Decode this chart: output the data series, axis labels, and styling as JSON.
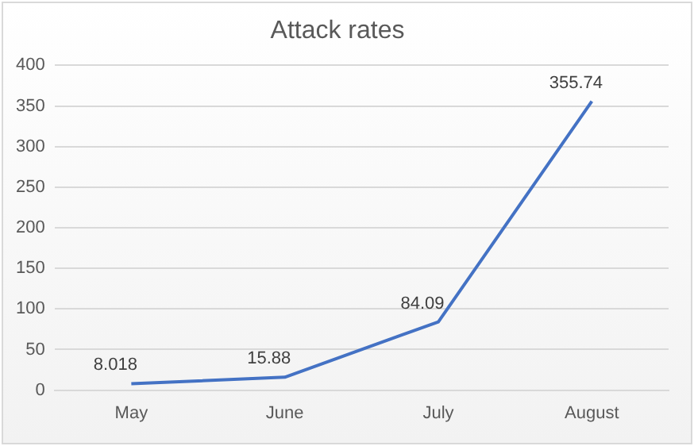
{
  "chart_data": {
    "type": "line",
    "title": "Attack rates",
    "categories": [
      "May",
      "June",
      "July",
      "August"
    ],
    "values": [
      8.018,
      15.88,
      84.09,
      355.74
    ],
    "value_labels": [
      "8.018",
      "15.88",
      "84.09",
      "355.74"
    ],
    "color": "#4472c4",
    "ylim": [
      0,
      400
    ],
    "yticks": [
      0,
      50,
      100,
      150,
      200,
      250,
      300,
      350,
      400
    ],
    "grid": "y",
    "legend": false,
    "marker": "none",
    "line_style": "solid"
  }
}
